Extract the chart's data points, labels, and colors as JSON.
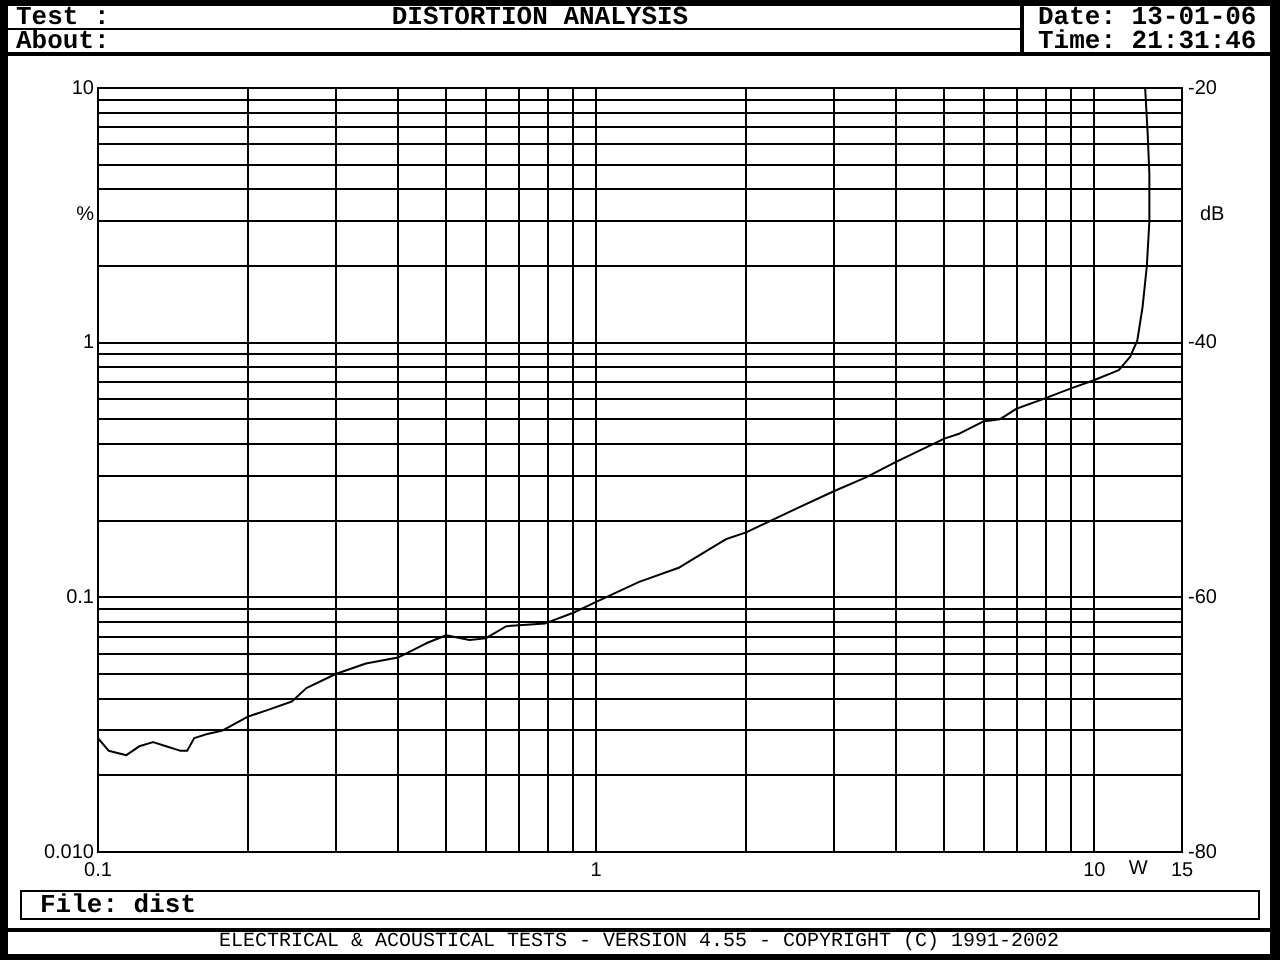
{
  "chart_data": {
    "type": "line",
    "title": "DISTORTION ANALYSIS",
    "xlabel": "W",
    "ylabel": "%",
    "y2label": "dB",
    "annotations": [
      "Test :",
      "About:",
      "Date: 13-01-06",
      "Time: 21:31:46",
      "File: dist",
      "ELECTRICAL & ACOUSTICAL TESTS - VERSION 4.55 - COPYRIGHT (C) 1991-2002"
    ],
    "x": [
      0.1,
      0.105,
      0.114,
      0.121,
      0.129,
      0.137,
      0.146,
      0.151,
      0.156,
      0.165,
      0.178,
      0.2,
      0.218,
      0.245,
      0.262,
      0.3,
      0.345,
      0.4,
      0.456,
      0.5,
      0.557,
      0.6,
      0.66,
      0.79,
      0.9,
      1.0,
      1.22,
      1.47,
      1.61,
      1.82,
      2.0,
      2.56,
      3.0,
      3.48,
      4.0,
      5.0,
      5.37,
      5.98,
      6.46,
      6.97,
      7.89,
      8.95,
      9.95,
      11.2,
      11.8,
      12.2,
      12.5,
      12.75,
      12.9,
      12.9,
      12.8,
      12.65
    ],
    "values": [
      0.028,
      0.025,
      0.024,
      0.026,
      0.027,
      0.026,
      0.025,
      0.025,
      0.028,
      0.029,
      0.03,
      0.034,
      0.036,
      0.039,
      0.044,
      0.05,
      0.055,
      0.058,
      0.066,
      0.071,
      0.068,
      0.069,
      0.077,
      0.079,
      0.087,
      0.096,
      0.115,
      0.131,
      0.146,
      0.169,
      0.18,
      0.226,
      0.261,
      0.296,
      0.34,
      0.42,
      0.44,
      0.49,
      0.5,
      0.55,
      0.6,
      0.66,
      0.71,
      0.78,
      0.88,
      1.02,
      1.38,
      2.0,
      3.0,
      4.6,
      6.6,
      10
    ],
    "color": "#000000",
    "log": "xy",
    "xlim": [
      0.1,
      15
    ],
    "xticks": [
      0.1,
      {
        "value": 0.2,
        "label": null
      },
      {
        "value": 0.3,
        "label": null
      },
      {
        "value": 0.4,
        "label": null
      },
      {
        "value": 0.5,
        "label": null
      },
      {
        "value": 0.6,
        "label": null
      },
      {
        "value": 0.7,
        "label": null
      },
      {
        "value": 0.8,
        "label": null
      },
      {
        "value": 0.9,
        "label": null
      },
      1,
      {
        "value": 2,
        "label": null
      },
      {
        "value": 3,
        "label": null
      },
      {
        "value": 4,
        "label": null
      },
      {
        "value": 5,
        "label": null
      },
      {
        "value": 6,
        "label": null
      },
      {
        "value": 7,
        "label": null
      },
      {
        "value": 8,
        "label": null
      },
      {
        "value": 9,
        "label": null
      },
      10,
      15
    ],
    "ylim": [
      0.01,
      10
    ],
    "yticks": [
      {
        "value": 0.01,
        "label": "0.010"
      },
      {
        "value": 0.02,
        "label": null
      },
      {
        "value": 0.03,
        "label": null
      },
      {
        "value": 0.04,
        "label": null
      },
      {
        "value": 0.05,
        "label": null
      },
      {
        "value": 0.06,
        "label": null
      },
      {
        "value": 0.07,
        "label": null
      },
      {
        "value": 0.08,
        "label": null
      },
      {
        "value": 0.09,
        "label": null
      },
      0.1,
      {
        "value": 0.2,
        "label": null
      },
      {
        "value": 0.3,
        "label": null
      },
      {
        "value": 0.4,
        "label": null
      },
      {
        "value": 0.5,
        "label": null
      },
      {
        "value": 0.6,
        "label": null
      },
      {
        "value": 0.7,
        "label": null
      },
      {
        "value": 0.8,
        "label": null
      },
      {
        "value": 0.9,
        "label": null
      },
      1,
      {
        "value": 2,
        "label": null
      },
      {
        "value": 3,
        "label": null
      },
      {
        "value": 4,
        "label": null
      },
      {
        "value": 5,
        "label": null
      },
      {
        "value": 6,
        "label": null
      },
      {
        "value": 7,
        "label": null
      },
      {
        "value": 8,
        "label": null
      },
      {
        "value": 9,
        "label": null
      },
      10
    ],
    "y2lim": [
      -80,
      -20
    ],
    "y2ticks": [
      -80,
      -60,
      -40,
      -20
    ],
    "grid": true
  }
}
